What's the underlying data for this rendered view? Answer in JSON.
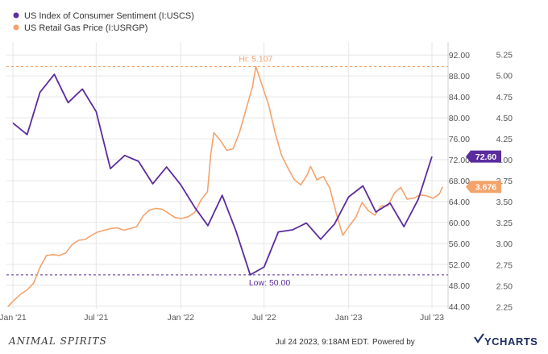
{
  "chart_data": {
    "type": "line",
    "x": [
      "2021-01",
      "2021-02",
      "2021-03",
      "2021-04",
      "2021-05",
      "2021-06",
      "2021-07",
      "2021-08",
      "2021-09",
      "2021-10",
      "2021-11",
      "2021-12",
      "2022-01",
      "2022-02",
      "2022-03",
      "2022-04",
      "2022-05",
      "2022-06",
      "2022-07",
      "2022-08",
      "2022-09",
      "2022-10",
      "2022-11",
      "2022-12",
      "2023-01",
      "2023-02",
      "2023-03",
      "2023-04",
      "2023-05",
      "2023-06",
      "2023-07"
    ],
    "x_ticks": [
      {
        "date": "2021-01",
        "label": "Jan '21"
      },
      {
        "date": "2021-07",
        "label": "Jul '21"
      },
      {
        "date": "2022-01",
        "label": "Jan '22"
      },
      {
        "date": "2022-07",
        "label": "Jul '22"
      },
      {
        "date": "2023-01",
        "label": "Jan '23"
      },
      {
        "date": "2023-07",
        "label": "Jul '23"
      }
    ],
    "xlim": [
      "2020-12-18",
      "2023-08-05"
    ],
    "series": [
      {
        "name": "US Index of Consumer Sentiment (I:USCS)",
        "color": "#5b2c9e",
        "axis": "left",
        "values": [
          79.0,
          76.8,
          84.9,
          88.3,
          82.9,
          85.5,
          81.2,
          70.3,
          72.8,
          71.7,
          67.4,
          70.6,
          67.2,
          62.8,
          59.4,
          65.2,
          58.4,
          50.0,
          51.5,
          58.2,
          58.6,
          59.9,
          56.8,
          59.7,
          64.9,
          67.0,
          62.0,
          63.7,
          59.2,
          64.4,
          72.6
        ],
        "end_label": "72.60",
        "extreme_label": "Low: 50.00",
        "extreme_value": 50.0
      },
      {
        "name": "US Retail Gas Price (I:USRGP)",
        "color": "#f4a36b",
        "axis": "right",
        "points": [
          [
            "2020-12-21",
            2.25
          ],
          [
            "2021-01-04",
            2.33
          ],
          [
            "2021-01-18",
            2.4
          ],
          [
            "2021-02-01",
            2.45
          ],
          [
            "2021-02-15",
            2.53
          ],
          [
            "2021-03-01",
            2.72
          ],
          [
            "2021-03-15",
            2.86
          ],
          [
            "2021-03-29",
            2.87
          ],
          [
            "2021-04-12",
            2.86
          ],
          [
            "2021-04-26",
            2.89
          ],
          [
            "2021-05-10",
            2.99
          ],
          [
            "2021-05-24",
            3.04
          ],
          [
            "2021-06-07",
            3.05
          ],
          [
            "2021-06-21",
            3.1
          ],
          [
            "2021-07-05",
            3.14
          ],
          [
            "2021-07-19",
            3.16
          ],
          [
            "2021-08-02",
            3.18
          ],
          [
            "2021-08-16",
            3.19
          ],
          [
            "2021-08-30",
            3.16
          ],
          [
            "2021-09-13",
            3.18
          ],
          [
            "2021-09-27",
            3.2
          ],
          [
            "2021-10-11",
            3.33
          ],
          [
            "2021-10-25",
            3.4
          ],
          [
            "2021-11-08",
            3.42
          ],
          [
            "2021-11-22",
            3.41
          ],
          [
            "2021-12-06",
            3.36
          ],
          [
            "2021-12-20",
            3.31
          ],
          [
            "2022-01-03",
            3.3
          ],
          [
            "2022-01-17",
            3.32
          ],
          [
            "2022-01-31",
            3.37
          ],
          [
            "2022-02-14",
            3.52
          ],
          [
            "2022-02-28",
            3.62
          ],
          [
            "2022-03-07",
            4.06
          ],
          [
            "2022-03-14",
            4.32
          ],
          [
            "2022-03-28",
            4.23
          ],
          [
            "2022-04-11",
            4.11
          ],
          [
            "2022-04-25",
            4.13
          ],
          [
            "2022-05-09",
            4.33
          ],
          [
            "2022-05-23",
            4.6
          ],
          [
            "2022-06-06",
            4.87
          ],
          [
            "2022-06-13",
            5.107
          ],
          [
            "2022-06-27",
            4.88
          ],
          [
            "2022-07-11",
            4.65
          ],
          [
            "2022-07-25",
            4.32
          ],
          [
            "2022-08-08",
            4.05
          ],
          [
            "2022-08-22",
            3.9
          ],
          [
            "2022-09-05",
            3.76
          ],
          [
            "2022-09-19",
            3.7
          ],
          [
            "2022-10-03",
            3.82
          ],
          [
            "2022-10-10",
            3.92
          ],
          [
            "2022-10-24",
            3.76
          ],
          [
            "2022-11-07",
            3.8
          ],
          [
            "2022-11-21",
            3.66
          ],
          [
            "2022-12-05",
            3.36
          ],
          [
            "2022-12-19",
            3.1
          ],
          [
            "2023-01-02",
            3.21
          ],
          [
            "2023-01-16",
            3.31
          ],
          [
            "2023-01-30",
            3.49
          ],
          [
            "2023-02-13",
            3.39
          ],
          [
            "2023-02-27",
            3.34
          ],
          [
            "2023-03-13",
            3.45
          ],
          [
            "2023-03-27",
            3.45
          ],
          [
            "2023-04-10",
            3.6
          ],
          [
            "2023-04-24",
            3.67
          ],
          [
            "2023-05-08",
            3.53
          ],
          [
            "2023-05-22",
            3.54
          ],
          [
            "2023-06-05",
            3.58
          ],
          [
            "2023-06-19",
            3.57
          ],
          [
            "2023-07-03",
            3.54
          ],
          [
            "2023-07-17",
            3.59
          ],
          [
            "2023-07-24",
            3.676
          ]
        ],
        "end_label": "3.676",
        "extreme_label": "Hi: 5.107",
        "extreme_value": 5.107
      }
    ],
    "y_left": {
      "ticks": [
        "44.00",
        "48.00",
        "52.00",
        "56.00",
        "60.00",
        "64.00",
        "68.00",
        "72.00",
        "76.00",
        "80.00",
        "84.00",
        "88.00",
        "92.00"
      ],
      "ylim": [
        43.5,
        94.5
      ]
    },
    "y_right": {
      "ticks": [
        "2.25",
        "2.50",
        "2.75",
        "3.00",
        "3.25",
        "3.50",
        "3.75",
        "4.00",
        "4.25",
        "4.50",
        "4.75",
        "5.00",
        "5.25"
      ],
      "ylim": [
        2.225,
        5.4
      ]
    },
    "grid": true,
    "legend_placement": "top-left"
  },
  "footer": {
    "watermark": "ANIMAL SPIRITS",
    "timestamp": "Jul 24 2023, 9:18AM EDT.",
    "powered_by": "Powered by",
    "brand": "YCHARTS"
  }
}
